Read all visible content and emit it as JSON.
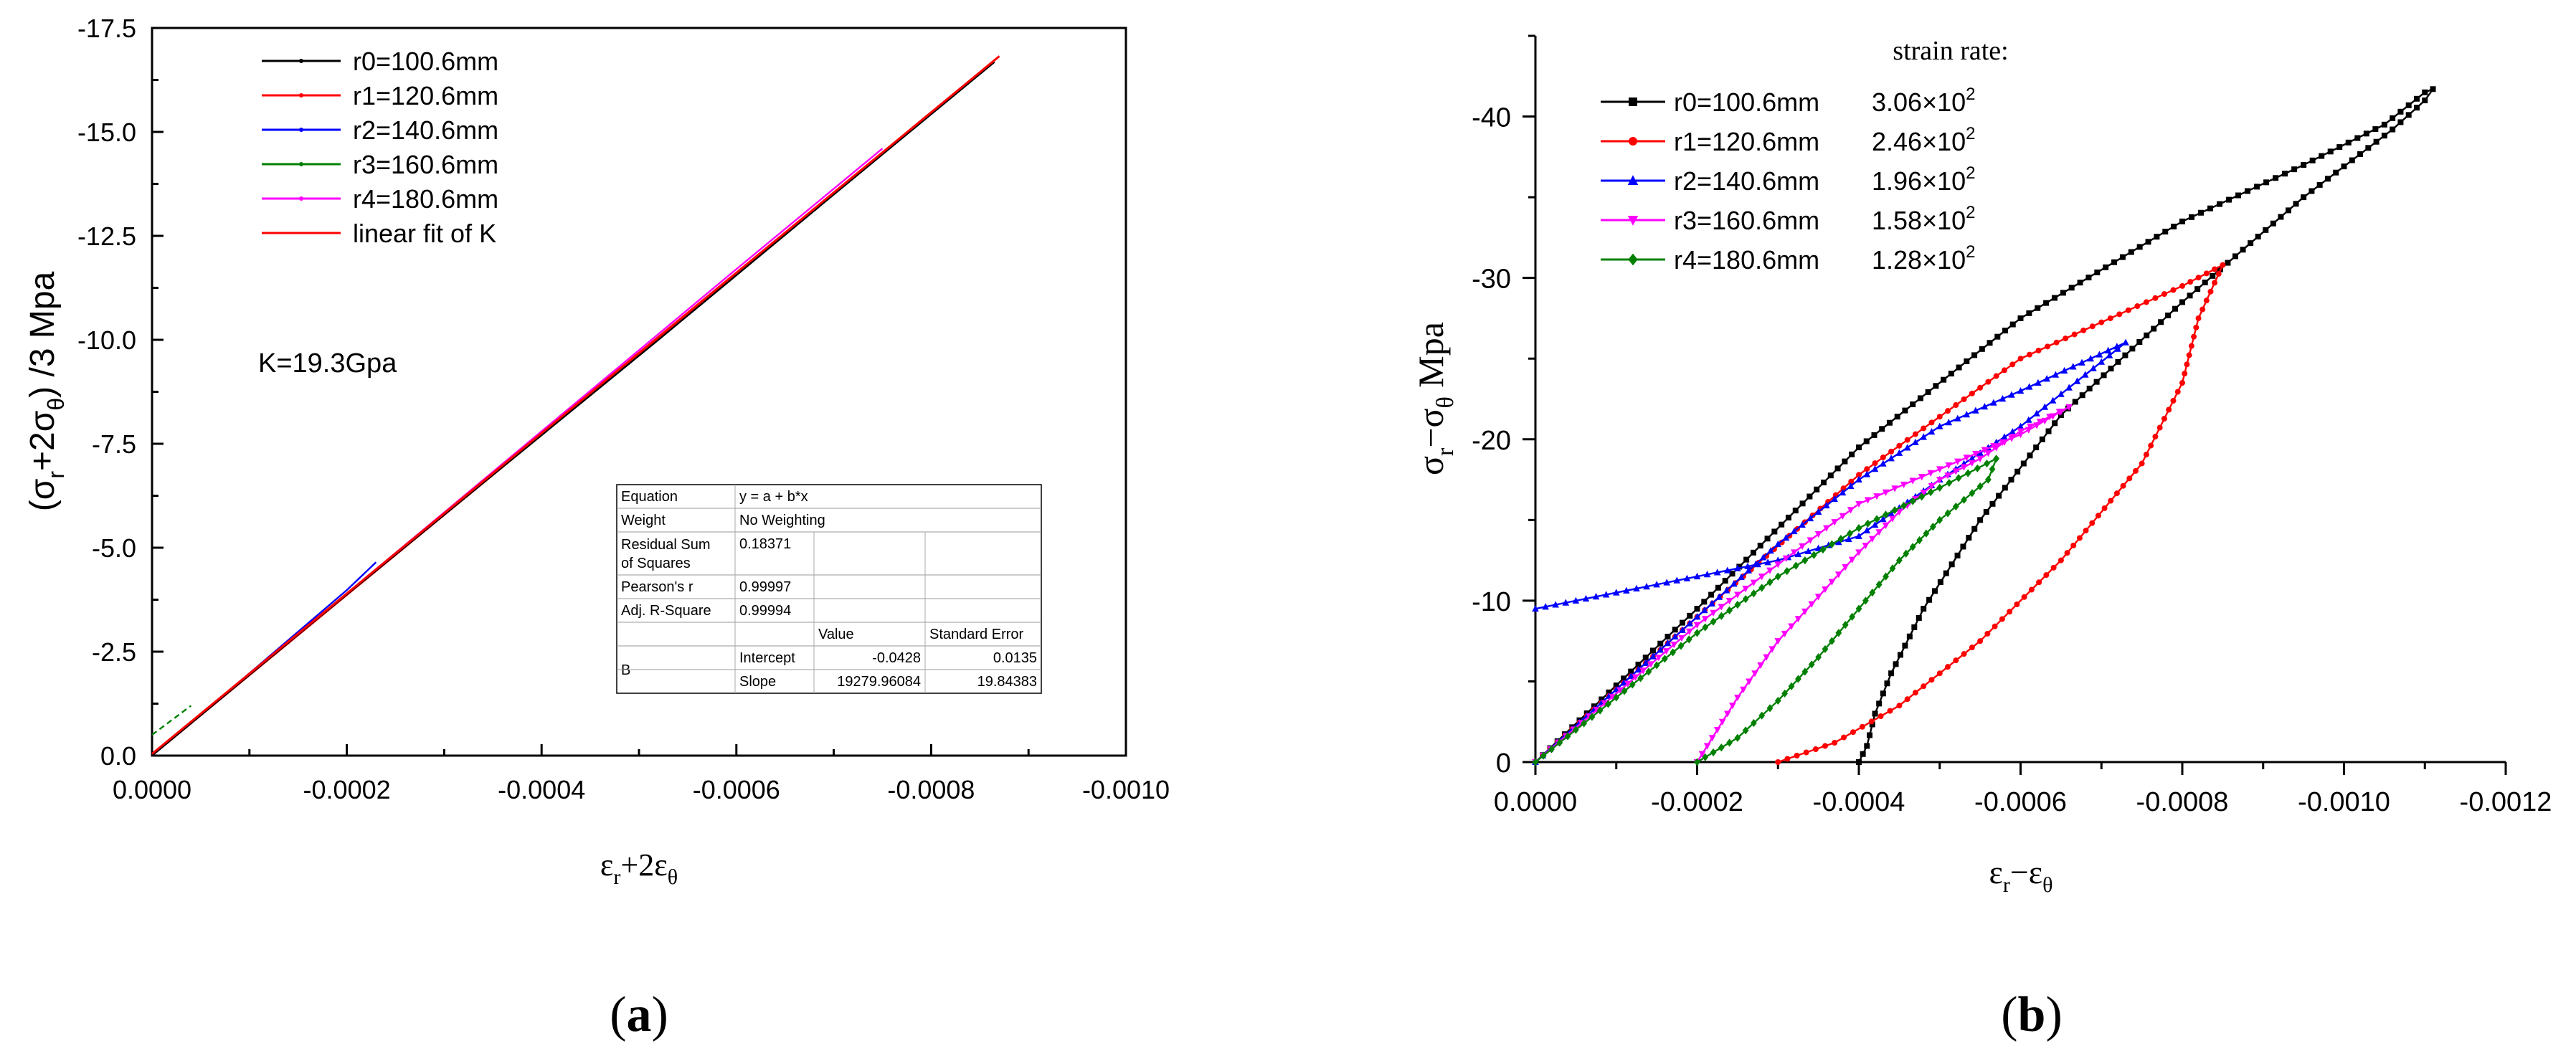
{
  "chart_data": [
    {
      "panel_label": "(a)",
      "type": "line",
      "xlabel": "ε_r+2ε_θ",
      "ylabel": "(σ_r+2σ_θ) /3  Mpa",
      "xlim": [
        0,
        -0.001
      ],
      "ylim": [
        0,
        -17.5
      ],
      "x_ticks": [
        "0.0000",
        "-0.0002",
        "-0.0004",
        "-0.0006",
        "-0.0008",
        "-0.0010"
      ],
      "x_tick_values": [
        0,
        -0.0002,
        -0.0004,
        -0.0006,
        -0.0008,
        -0.001
      ],
      "y_ticks": [
        "0.0",
        "-2.5",
        "-5.0",
        "-7.5",
        "-10.0",
        "-12.5",
        "-15.0",
        "-17.5"
      ],
      "y_tick_values": [
        0,
        -2.5,
        -5,
        -7.5,
        -10,
        -12.5,
        -15,
        -17.5
      ],
      "grid": false,
      "legend_position": "top-left",
      "annotation": "K=19.3Gpa",
      "series": [
        {
          "name": "r0=100.6mm",
          "color": "#000000",
          "x": [
            0,
            -0.00017,
            -0.00035,
            -0.00052,
            -0.00069,
            -0.000865
          ],
          "y": [
            0,
            -3.3,
            -6.75,
            -10.0,
            -13.3,
            -16.68
          ]
        },
        {
          "name": "r1=120.6mm",
          "color": "#ff0000",
          "x": [
            0,
            -0.0002,
            -0.0004,
            -0.0006,
            -0.00086
          ],
          "y": [
            0,
            -3.86,
            -7.71,
            -11.57,
            -16.6
          ]
        },
        {
          "name": "r2=140.6mm",
          "color": "#0000ff",
          "x": [
            0,
            -0.0001,
            -0.0002,
            -0.00023
          ],
          "y": [
            0,
            -1.98,
            -3.98,
            -4.65
          ]
        },
        {
          "name": "r3=160.6mm",
          "color": "#008000",
          "x": [
            0,
            -2e-05,
            -4e-05
          ],
          "y": [
            -0.5,
            -0.85,
            -1.2
          ]
        },
        {
          "name": "r4=180.6mm",
          "color": "#ff00ff",
          "x": [
            0,
            -0.0001,
            -0.0002,
            -0.0004,
            -0.0006,
            -0.00075
          ],
          "y": [
            0,
            -1.95,
            -3.9,
            -7.8,
            -11.7,
            -14.6
          ]
        },
        {
          "name": "linear fit of K",
          "color": "#ff0000",
          "x": [
            0,
            -0.00087
          ],
          "y": [
            -0.0428,
            -16.82
          ]
        }
      ],
      "fit_table": {
        "rows": [
          [
            "Equation",
            "y = a + b*x",
            "",
            ""
          ],
          [
            "Weight",
            "No Weighting",
            "",
            ""
          ],
          [
            "Residual Sum of Squares",
            "0.18371",
            "",
            ""
          ],
          [
            "Pearson's r",
            "0.99997",
            "",
            ""
          ],
          [
            "Adj. R-Square",
            "0.99994",
            "",
            ""
          ],
          [
            "",
            "",
            "Value",
            "Standard Error"
          ],
          [
            "B",
            "Intercept",
            "-0.0428",
            "0.0135"
          ],
          [
            "",
            "Slope",
            "19279.96084",
            "19.84383"
          ]
        ]
      }
    },
    {
      "panel_label": "(b)",
      "type": "line",
      "xlabel": "ε_r−ε_θ",
      "ylabel": "σ_r−σ_θ  Mpa",
      "xlim": [
        0,
        -0.0012
      ],
      "ylim": [
        0,
        -45
      ],
      "x_ticks": [
        "0.0000",
        "-0.0002",
        "-0.0004",
        "-0.0006",
        "-0.0008",
        "-0.0010",
        "-0.0012"
      ],
      "x_tick_values": [
        0,
        -0.0002,
        -0.0004,
        -0.0006,
        -0.0008,
        -0.001,
        -0.0012
      ],
      "y_ticks": [
        "0",
        "-10",
        "-20",
        "-30",
        "-40"
      ],
      "y_tick_values": [
        0,
        -10,
        -20,
        -30,
        -40
      ],
      "grid": false,
      "legend_position": "top-left",
      "legend_title": "strain rate:",
      "series": [
        {
          "name": "r0=100.6mm",
          "strain_rate": "3.06×10",
          "color": "#000000",
          "marker": "square",
          "x": [
            0,
            -0.0002,
            -0.0004,
            -0.0006,
            -0.0008,
            -0.00095,
            -0.00105,
            -0.0011,
            -0.00111,
            -0.0011,
            -0.00106,
            -0.00095,
            -0.0008,
            -0.00065,
            -0.00055,
            -0.00048,
            -0.00044,
            -0.00042,
            -0.00041,
            -0.0004
          ],
          "y": [
            0,
            -9.5,
            -19.5,
            -27.5,
            -33.5,
            -37.0,
            -39.5,
            -41.5,
            -41.7,
            -41.0,
            -39.2,
            -35.0,
            -28.5,
            -21.5,
            -15.0,
            -9.5,
            -5.5,
            -3.0,
            -1.0,
            0
          ]
        },
        {
          "name": "r1=120.6mm",
          "strain_rate": "2.46×10",
          "color": "#ff0000",
          "marker": "circle",
          "x": [
            0,
            -0.0002,
            -0.0004,
            -0.0006,
            -0.0008,
            -0.00085,
            -0.00082,
            -0.0008,
            -0.00075,
            -0.00065,
            -0.00055,
            -0.00045,
            -0.00037,
            -0.0003
          ],
          "y": [
            0,
            -9.0,
            -17.8,
            -25.0,
            -29.5,
            -30.8,
            -27.5,
            -23.5,
            -18.5,
            -12.5,
            -7.5,
            -3.5,
            -1.2,
            0
          ]
        },
        {
          "name": "r2=140.6mm",
          "strain_rate": "1.96×10",
          "color": "#0000ff",
          "marker": "triangle",
          "x": [
            0,
            -0.0001,
            -0.0002,
            -0.0003,
            -0.0004,
            -0.0005,
            -0.0006,
            -0.00073,
            -0.0006,
            -0.0005,
            -0.0004,
            -0.0003,
            -0.00015,
            0
          ],
          "y": [
            0,
            -4.5,
            -9.0,
            -13.5,
            -17.5,
            -20.8,
            -23.0,
            -26.0,
            -20.8,
            -17.5,
            -14.0,
            -12.5,
            -11.0,
            -9.5
          ]
        },
        {
          "name": "r3=160.6mm",
          "strain_rate": "1.58×10",
          "color": "#ff00ff",
          "marker": "triangle-down",
          "x": [
            0,
            -0.0002,
            -0.0004,
            -0.0006,
            -0.00066,
            -0.0006,
            -0.00055,
            -0.0005,
            -0.00045,
            -0.0004,
            -0.0003,
            -0.00025,
            -0.0002
          ],
          "y": [
            0,
            -8.5,
            -16.0,
            -20.3,
            -22.0,
            -20.5,
            -18.8,
            -17.5,
            -15.5,
            -13.0,
            -7.5,
            -4.0,
            0
          ]
        },
        {
          "name": "r4=180.6mm",
          "strain_rate": "1.28×10",
          "color": "#008000",
          "marker": "diamond",
          "x": [
            0,
            -0.0001,
            -0.0002,
            -0.0003,
            -0.0004,
            -0.0005,
            -0.00057,
            -0.00056,
            -0.0005,
            -0.00045,
            -0.0004,
            -0.00035,
            -0.0003,
            -0.00025,
            -0.0002
          ],
          "y": [
            0,
            -4.0,
            -8.0,
            -11.5,
            -14.5,
            -17.0,
            -18.8,
            -17.5,
            -15.0,
            -12.5,
            -9.5,
            -6.5,
            -3.8,
            -1.5,
            0
          ]
        }
      ]
    }
  ]
}
